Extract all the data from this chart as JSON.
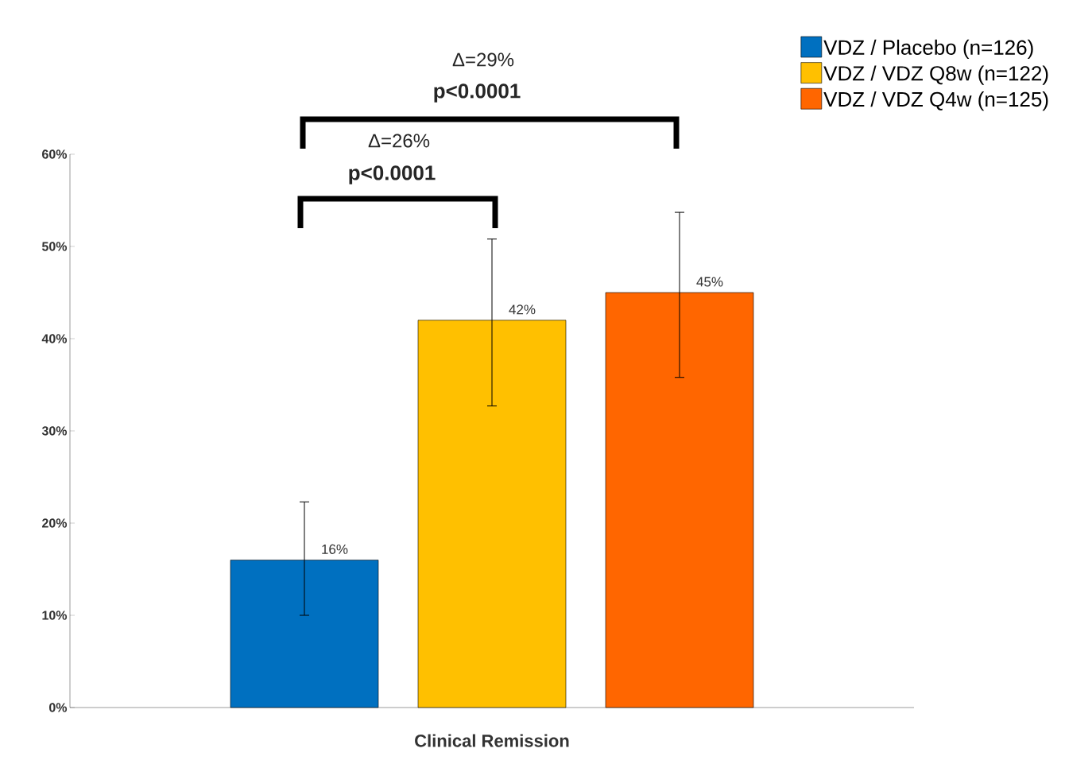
{
  "chart_data": {
    "type": "bar",
    "categories": [
      "Clinical Remission"
    ],
    "series": [
      {
        "name": "VDZ / Placebo (n=126)",
        "color": "#0070c0",
        "values": [
          16
        ],
        "errors": [
          [
            10,
            22.3
          ]
        ],
        "value_labels": [
          "16%"
        ]
      },
      {
        "name": "VDZ / VDZ Q8w (n=122)",
        "color": "#ffc000",
        "values": [
          42
        ],
        "errors": [
          [
            32.7,
            50.8
          ]
        ],
        "value_labels": [
          "42%"
        ]
      },
      {
        "name": "VDZ / VDZ Q4w (n=125)",
        "color": "#ff6600",
        "values": [
          45
        ],
        "errors": [
          [
            35.8,
            53.7
          ]
        ],
        "value_labels": [
          "45%"
        ]
      }
    ],
    "ylim": [
      0,
      60
    ],
    "yticks": [
      {
        "value": 0,
        "label": "0%"
      },
      {
        "value": 10,
        "label": "10%"
      },
      {
        "value": 20,
        "label": "20%"
      },
      {
        "value": 30,
        "label": "30%"
      },
      {
        "value": 40,
        "label": "40%"
      },
      {
        "value": 50,
        "label": "50%"
      },
      {
        "value": 60,
        "label": "60%"
      }
    ],
    "annotations": [
      "Δ=29%",
      "p<0.0001",
      "Δ=26%",
      "p<0.0001"
    ],
    "grid": false,
    "legend": "top right"
  }
}
